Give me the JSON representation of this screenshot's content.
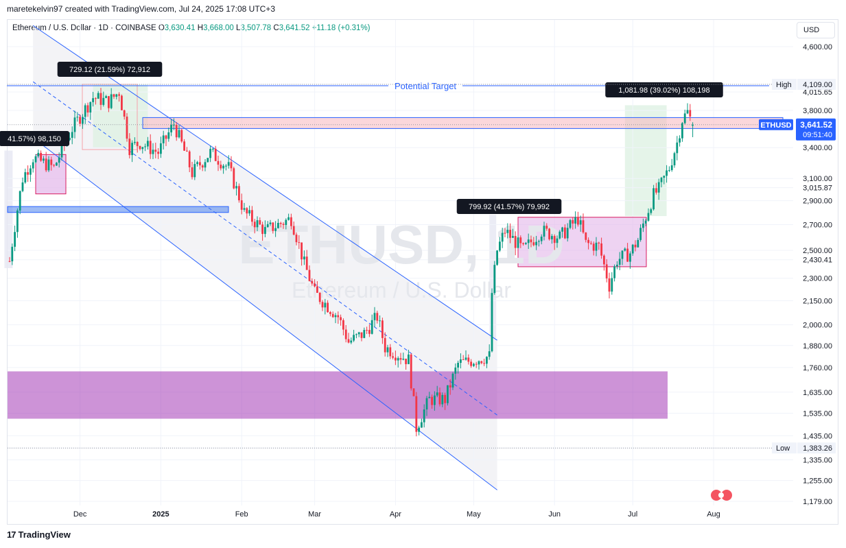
{
  "header": {
    "attribution": "maretekelvin97 created with TradingView.com, Jul 24, 2025 17:08 UTC+3"
  },
  "legend": {
    "symbol": "Ethereum / U.S. Dollar · 1D · COINBASE",
    "open_k": "O",
    "open": "3,630.41",
    "high_k": "H",
    "high": "3,668.00",
    "low_k": "L",
    "low": "3,507.78",
    "close_k": "C",
    "close": "3,641.52",
    "change": "+11.18 (+0.31%)"
  },
  "currency_button": "USD",
  "watermark": {
    "main": "ETHUSD, 1D",
    "sub": "Ethereum / U.S. Dollar"
  },
  "footer": {
    "brand": "TradingView",
    "logo": "17"
  },
  "colors": {
    "up": "#089981",
    "down": "#f23645",
    "channel": "#2962ff",
    "zone_purple": "#9c27b0",
    "zone_pink": "#f7b7bd",
    "zone_blue": "#5b8def",
    "price_tag": "#2962ff"
  },
  "chart_data": {
    "type": "candlestick",
    "symbol": "ETHUSD",
    "timeframe": "1D",
    "y_axis_labels": [
      "4,600.00",
      "4,109.00",
      "4,015.65",
      "3,800.00",
      "3,400.00",
      "3,100.00",
      "3,015.87",
      "2,900.00",
      "2,700.00",
      "2,500.00",
      "2,430.41",
      "2,300.00",
      "2,150.00",
      "2,000.00",
      "1,880.00",
      "1,760.00",
      "1,635.00",
      "1,535.00",
      "1,435.00",
      "1,383.26",
      "1,335.00",
      "1,255.00",
      "1,179.00"
    ],
    "x_axis_labels": [
      "Dec",
      "2025",
      "Feb",
      "Mar",
      "Apr",
      "May",
      "Jun",
      "Jul",
      "Aug"
    ],
    "high_marker": {
      "label": "High",
      "value": "4,109.00"
    },
    "low_marker": {
      "label": "Low",
      "value": "1,383.26"
    },
    "last_price": {
      "symbol": "ETHUSD",
      "value": "3,641.52",
      "countdown": "09:51:40"
    },
    "annotations": [
      {
        "text": "729.12 (21.59%) 72,912"
      },
      {
        "text": "41.57%) 98,150"
      },
      {
        "text": "799.92 (41.57%) 79,992"
      },
      {
        "text": "1,081.98 (39.02%) 108,198"
      },
      {
        "text": "Potential Target"
      }
    ],
    "key_levels": [
      {
        "price": 3641.52,
        "label": "last"
      },
      {
        "price": 4109.0,
        "label": "High"
      },
      {
        "price": 1383.26,
        "label": "Low"
      }
    ],
    "zones": [
      {
        "name": "resistance",
        "from": 3600,
        "to": 3720
      },
      {
        "name": "support",
        "from": 1510,
        "to": 1740
      },
      {
        "name": "consolidation",
        "from": 2370,
        "to": 2770
      }
    ],
    "price_path": [
      [
        "2024-11-04",
        2420
      ],
      [
        "2024-11-09",
        3100
      ],
      [
        "2024-11-13",
        3300
      ],
      [
        "2024-11-21",
        3200
      ],
      [
        "2024-11-28",
        3600
      ],
      [
        "2024-12-06",
        3950
      ],
      [
        "2024-12-12",
        3900
      ],
      [
        "2024-12-16",
        4020
      ],
      [
        "2024-12-20",
        3400
      ],
      [
        "2024-12-24",
        3450
      ],
      [
        "2024-12-31",
        3350
      ],
      [
        "2025-01-06",
        3650
      ],
      [
        "2025-01-13",
        3150
      ],
      [
        "2025-01-20",
        3350
      ],
      [
        "2025-01-27",
        3200
      ],
      [
        "2025-02-02",
        2800
      ],
      [
        "2025-02-10",
        2650
      ],
      [
        "2025-02-20",
        2750
      ],
      [
        "2025-02-25",
        2400
      ],
      [
        "2025-03-01",
        2200
      ],
      [
        "2025-03-10",
        2050
      ],
      [
        "2025-03-14",
        1900
      ],
      [
        "2025-03-20",
        1950
      ],
      [
        "2025-03-25",
        2050
      ],
      [
        "2025-03-28",
        1870
      ],
      [
        "2025-04-06",
        1800
      ],
      [
        "2025-04-09",
        1470
      ],
      [
        "2025-04-14",
        1600
      ],
      [
        "2025-04-20",
        1600
      ],
      [
        "2025-04-25",
        1780
      ],
      [
        "2025-05-01",
        1800
      ],
      [
        "2025-05-07",
        1820
      ],
      [
        "2025-05-08",
        2200
      ],
      [
        "2025-05-10",
        2500
      ],
      [
        "2025-05-13",
        2650
      ],
      [
        "2025-05-20",
        2500
      ],
      [
        "2025-05-27",
        2650
      ],
      [
        "2025-06-03",
        2600
      ],
      [
        "2025-06-10",
        2750
      ],
      [
        "2025-06-13",
        2550
      ],
      [
        "2025-06-18",
        2530
      ],
      [
        "2025-06-22",
        2250
      ],
      [
        "2025-06-25",
        2430
      ],
      [
        "2025-06-30",
        2480
      ],
      [
        "2025-07-03",
        2580
      ],
      [
        "2025-07-09",
        2950
      ],
      [
        "2025-07-11",
        3000
      ],
      [
        "2025-07-15",
        3200
      ],
      [
        "2025-07-18",
        3450
      ],
      [
        "2025-07-20",
        3700
      ],
      [
        "2025-07-22",
        3780
      ],
      [
        "2025-07-24",
        3641.52
      ]
    ]
  }
}
